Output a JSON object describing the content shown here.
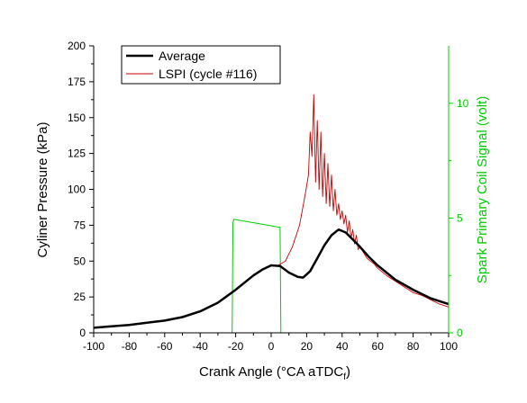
{
  "chart_data": {
    "type": "line",
    "xlabel": "Crank Angle (°CA aTDC",
    "xlabel_sub": "f",
    "xlabel_close": ")",
    "ylabel": "Cyliner Pressure (kPa)",
    "y2label": "Spark Primary Coil Signal (volt)",
    "xlim": [
      -100,
      100
    ],
    "ylim": [
      0,
      200
    ],
    "y2lim": [
      0,
      12.5
    ],
    "xticks": [
      -100,
      -80,
      -60,
      -40,
      -20,
      0,
      20,
      40,
      60,
      80,
      100
    ],
    "yticks": [
      0,
      25,
      50,
      75,
      100,
      125,
      150,
      175,
      200
    ],
    "y2ticks": [
      0,
      5,
      10
    ],
    "legend_position": "top-left",
    "colors": {
      "average": "#000000",
      "lspi": "#cc0000",
      "spark": "#00cc00",
      "y2axis": "#00cc00"
    },
    "series": [
      {
        "name": "Average",
        "axis": "left",
        "x": [
          -100,
          -90,
          -80,
          -70,
          -60,
          -50,
          -40,
          -30,
          -20,
          -15,
          -10,
          -5,
          0,
          5,
          10,
          15,
          18,
          22,
          26,
          30,
          34,
          38,
          42,
          46,
          50,
          55,
          60,
          70,
          80,
          90,
          100
        ],
        "values": [
          3.5,
          4.5,
          5.5,
          7,
          8.5,
          11,
          15,
          21,
          30,
          35,
          40,
          44,
          47,
          46.5,
          42,
          39,
          38.5,
          43,
          52,
          61,
          68,
          72,
          70,
          65,
          60,
          53,
          47,
          37,
          30,
          24,
          20
        ]
      },
      {
        "name": "LSPI (cycle #116)",
        "axis": "left",
        "x": [
          -100,
          -90,
          -80,
          -70,
          -60,
          -50,
          -40,
          -30,
          -20,
          -15,
          -10,
          -5,
          0,
          4,
          8,
          12,
          16,
          19,
          21,
          22,
          23,
          24,
          25,
          26,
          27,
          28,
          29,
          30,
          31,
          32,
          33,
          34,
          35,
          36,
          37,
          38,
          39,
          40,
          41,
          42,
          43,
          44,
          45,
          46,
          47,
          48,
          49,
          50,
          52,
          54,
          56,
          58,
          60,
          65,
          70,
          75,
          80,
          85,
          90,
          95,
          100
        ],
        "values": [
          3.5,
          4.5,
          5.5,
          7,
          8.5,
          11,
          15,
          21,
          30,
          35,
          40,
          44,
          47,
          47,
          50,
          60,
          75,
          95,
          110,
          140,
          123,
          166,
          105,
          148,
          100,
          140,
          95,
          125,
          90,
          118,
          88,
          110,
          85,
          100,
          82,
          90,
          79,
          85,
          76,
          82,
          70,
          78,
          66,
          72,
          62,
          68,
          58,
          60,
          56,
          52,
          50,
          48,
          45,
          40,
          36,
          32,
          28,
          26,
          23,
          20,
          18
        ]
      },
      {
        "name": "Spark",
        "axis": "right",
        "x": [
          -22,
          -21.5,
          -21,
          4.5,
          5,
          5.5,
          100
        ],
        "values": [
          0,
          4.8,
          4.95,
          4.6,
          4.6,
          0,
          0
        ]
      }
    ]
  }
}
